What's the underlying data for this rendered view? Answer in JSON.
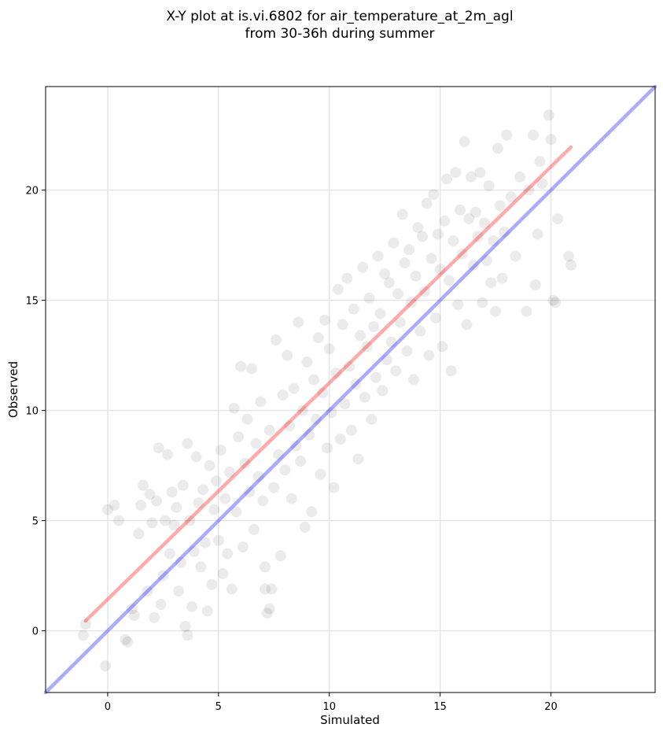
{
  "chart_data": {
    "type": "scatter",
    "title_lines": [
      "X-Y plot at is.vi.6802 for air_temperature_at_2m_agl",
      "from 30-36h during summer"
    ],
    "xlabel": "Simulated",
    "ylabel": "Observed",
    "xlim": [
      -2.8,
      24.7
    ],
    "ylim": [
      -2.8,
      24.7
    ],
    "x_ticks": [
      0,
      5,
      10,
      15,
      20
    ],
    "y_ticks": [
      0,
      5,
      10,
      15,
      20
    ],
    "x_tick_labels": [
      "0",
      "5",
      "10",
      "15",
      "20"
    ],
    "y_tick_labels": [
      "0",
      "5",
      "10",
      "15",
      "20"
    ],
    "grid": true,
    "marker_color": "#000000",
    "marker_alpha": 0.08,
    "points": [
      [
        -1.1,
        -0.2
      ],
      [
        -1.0,
        0.3
      ],
      [
        -0.1,
        -1.6
      ],
      [
        0.0,
        5.5
      ],
      [
        0.3,
        5.7
      ],
      [
        0.5,
        5.0
      ],
      [
        0.8,
        -0.4
      ],
      [
        0.9,
        -0.5
      ],
      [
        1.1,
        1.0
      ],
      [
        1.2,
        0.7
      ],
      [
        1.4,
        4.4
      ],
      [
        1.5,
        5.7
      ],
      [
        1.6,
        6.6
      ],
      [
        1.8,
        1.8
      ],
      [
        1.9,
        6.2
      ],
      [
        2.0,
        4.9
      ],
      [
        2.1,
        0.6
      ],
      [
        2.2,
        5.9
      ],
      [
        2.3,
        8.3
      ],
      [
        2.4,
        1.2
      ],
      [
        2.5,
        2.5
      ],
      [
        2.6,
        5.0
      ],
      [
        2.7,
        8.0
      ],
      [
        2.8,
        3.5
      ],
      [
        2.9,
        6.3
      ],
      [
        3.0,
        4.8
      ],
      [
        3.1,
        5.6
      ],
      [
        3.2,
        1.8
      ],
      [
        3.3,
        3.1
      ],
      [
        3.4,
        6.6
      ],
      [
        3.5,
        0.2
      ],
      [
        3.6,
        -0.2
      ],
      [
        3.6,
        8.5
      ],
      [
        3.7,
        5.0
      ],
      [
        3.8,
        1.1
      ],
      [
        3.9,
        3.6
      ],
      [
        4.0,
        7.9
      ],
      [
        4.1,
        5.8
      ],
      [
        4.2,
        2.9
      ],
      [
        4.3,
        6.4
      ],
      [
        4.4,
        4.0
      ],
      [
        4.5,
        0.9
      ],
      [
        4.6,
        7.5
      ],
      [
        4.7,
        2.1
      ],
      [
        4.8,
        5.5
      ],
      [
        4.9,
        6.8
      ],
      [
        5.0,
        4.1
      ],
      [
        5.1,
        8.2
      ],
      [
        5.2,
        2.6
      ],
      [
        5.3,
        6.0
      ],
      [
        5.4,
        3.5
      ],
      [
        5.5,
        7.2
      ],
      [
        5.6,
        1.9
      ],
      [
        5.7,
        10.1
      ],
      [
        5.8,
        5.4
      ],
      [
        5.9,
        8.8
      ],
      [
        6.0,
        12.0
      ],
      [
        6.1,
        3.8
      ],
      [
        6.2,
        7.6
      ],
      [
        6.3,
        9.6
      ],
      [
        6.4,
        6.3
      ],
      [
        6.5,
        11.9
      ],
      [
        6.6,
        4.6
      ],
      [
        6.7,
        8.5
      ],
      [
        6.8,
        7.0
      ],
      [
        6.9,
        10.4
      ],
      [
        7.0,
        5.9
      ],
      [
        7.1,
        2.9
      ],
      [
        7.1,
        1.9
      ],
      [
        7.2,
        0.8
      ],
      [
        7.3,
        1.0
      ],
      [
        7.3,
        9.1
      ],
      [
        7.4,
        1.9
      ],
      [
        7.5,
        6.5
      ],
      [
        7.6,
        13.2
      ],
      [
        7.7,
        8.0
      ],
      [
        7.8,
        3.4
      ],
      [
        7.9,
        10.7
      ],
      [
        8.0,
        7.3
      ],
      [
        8.1,
        12.5
      ],
      [
        8.2,
        9.3
      ],
      [
        8.3,
        6.0
      ],
      [
        8.4,
        11.0
      ],
      [
        8.5,
        8.4
      ],
      [
        8.6,
        14.0
      ],
      [
        8.7,
        7.7
      ],
      [
        8.8,
        10.0
      ],
      [
        8.9,
        4.7
      ],
      [
        9.0,
        12.2
      ],
      [
        9.1,
        8.9
      ],
      [
        9.2,
        5.4
      ],
      [
        9.3,
        11.4
      ],
      [
        9.4,
        9.6
      ],
      [
        9.5,
        13.3
      ],
      [
        9.6,
        7.1
      ],
      [
        9.7,
        10.8
      ],
      [
        9.8,
        14.1
      ],
      [
        9.9,
        8.3
      ],
      [
        10.0,
        12.8
      ],
      [
        10.1,
        9.9
      ],
      [
        10.2,
        6.5
      ],
      [
        10.3,
        11.7
      ],
      [
        10.4,
        15.5
      ],
      [
        10.5,
        8.7
      ],
      [
        10.6,
        13.9
      ],
      [
        10.7,
        10.3
      ],
      [
        10.8,
        16.0
      ],
      [
        10.9,
        12.0
      ],
      [
        11.0,
        9.1
      ],
      [
        11.1,
        14.6
      ],
      [
        11.2,
        11.2
      ],
      [
        11.3,
        7.8
      ],
      [
        11.4,
        13.4
      ],
      [
        11.5,
        16.5
      ],
      [
        11.6,
        10.6
      ],
      [
        11.7,
        12.9
      ],
      [
        11.8,
        15.1
      ],
      [
        11.9,
        9.6
      ],
      [
        12.0,
        13.8
      ],
      [
        12.1,
        11.5
      ],
      [
        12.2,
        17.0
      ],
      [
        12.3,
        14.4
      ],
      [
        12.4,
        10.9
      ],
      [
        12.5,
        16.2
      ],
      [
        12.6,
        12.3
      ],
      [
        12.7,
        15.8
      ],
      [
        12.8,
        13.1
      ],
      [
        12.9,
        17.6
      ],
      [
        13.0,
        11.8
      ],
      [
        13.1,
        15.3
      ],
      [
        13.2,
        14.0
      ],
      [
        13.3,
        18.9
      ],
      [
        13.4,
        16.7
      ],
      [
        13.5,
        12.7
      ],
      [
        13.6,
        17.3
      ],
      [
        13.7,
        14.9
      ],
      [
        13.8,
        11.4
      ],
      [
        13.9,
        16.1
      ],
      [
        14.0,
        18.3
      ],
      [
        14.1,
        13.6
      ],
      [
        14.2,
        17.9
      ],
      [
        14.3,
        15.4
      ],
      [
        14.4,
        19.4
      ],
      [
        14.5,
        12.5
      ],
      [
        14.6,
        16.9
      ],
      [
        14.7,
        19.8
      ],
      [
        14.8,
        14.2
      ],
      [
        14.9,
        18.0
      ],
      [
        15.0,
        16.4
      ],
      [
        15.1,
        12.9
      ],
      [
        15.2,
        18.6
      ],
      [
        15.3,
        20.5
      ],
      [
        15.4,
        15.9
      ],
      [
        15.5,
        11.8
      ],
      [
        15.6,
        17.7
      ],
      [
        15.7,
        20.8
      ],
      [
        15.8,
        14.8
      ],
      [
        15.9,
        19.1
      ],
      [
        16.0,
        17.1
      ],
      [
        16.1,
        22.2
      ],
      [
        16.2,
        13.9
      ],
      [
        16.3,
        18.7
      ],
      [
        16.4,
        20.6
      ],
      [
        16.5,
        16.6
      ],
      [
        16.6,
        19.0
      ],
      [
        16.7,
        17.9
      ],
      [
        16.8,
        20.8
      ],
      [
        16.9,
        14.9
      ],
      [
        17.0,
        18.5
      ],
      [
        17.1,
        16.8
      ],
      [
        17.2,
        20.2
      ],
      [
        17.3,
        15.8
      ],
      [
        17.4,
        17.7
      ],
      [
        17.5,
        14.5
      ],
      [
        17.6,
        21.9
      ],
      [
        17.7,
        19.3
      ],
      [
        17.8,
        16.0
      ],
      [
        17.9,
        18.1
      ],
      [
        18.0,
        22.5
      ],
      [
        18.2,
        19.7
      ],
      [
        18.4,
        17.0
      ],
      [
        18.6,
        20.6
      ],
      [
        18.9,
        14.5
      ],
      [
        19.0,
        20.0
      ],
      [
        19.2,
        22.5
      ],
      [
        19.3,
        15.7
      ],
      [
        19.4,
        18.0
      ],
      [
        19.5,
        21.3
      ],
      [
        19.6,
        20.3
      ],
      [
        19.9,
        23.4
      ],
      [
        20.0,
        22.3
      ],
      [
        20.1,
        15.0
      ],
      [
        20.2,
        14.9
      ],
      [
        20.3,
        18.7
      ],
      [
        20.8,
        17.0
      ],
      [
        20.9,
        16.6
      ]
    ],
    "lines": [
      {
        "name": "one-to-one",
        "color": "#0000ff",
        "alpha": 0.33,
        "x": [
          -2.8,
          24.7
        ],
        "y": [
          -2.8,
          24.7
        ]
      },
      {
        "name": "regression",
        "color": "#ff0000",
        "alpha": 0.33,
        "x": [
          -1.0,
          20.9
        ],
        "y": [
          0.45,
          21.95
        ]
      }
    ]
  }
}
